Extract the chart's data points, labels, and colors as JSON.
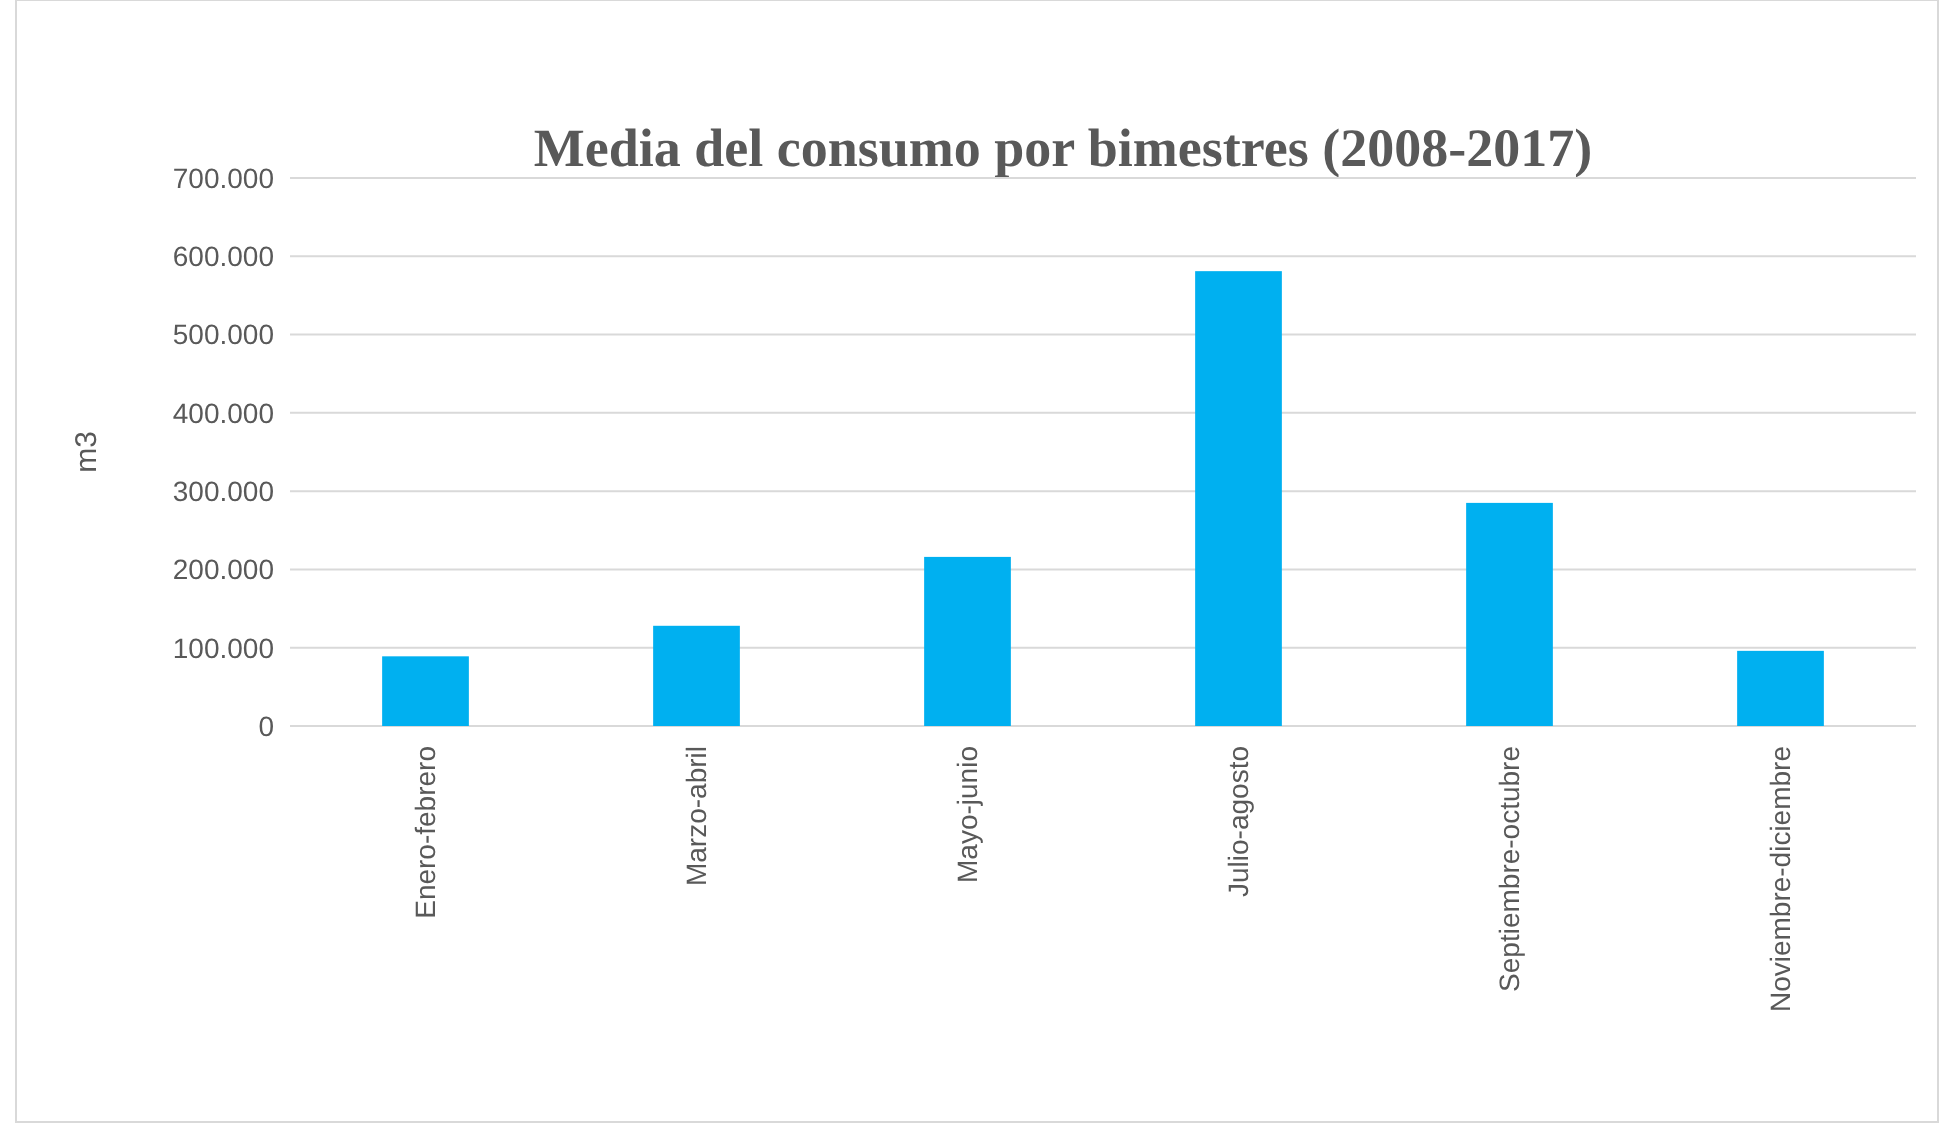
{
  "chart_data": {
    "type": "bar",
    "title": "Media del consumo por bimestres (2008-2017)",
    "ylabel": "m3",
    "categories": [
      "Enero-febrero",
      "Marzo-abril",
      "Mayo-junio",
      "Julio-agosto",
      "Septiembre-octubre",
      "Noviembre-diciembre"
    ],
    "values": [
      89000,
      128000,
      216000,
      581000,
      285000,
      96000
    ],
    "color": "#00b0f0",
    "ylim": [
      0,
      700000
    ],
    "yticks": [
      {
        "value": 0,
        "label": "0"
      },
      {
        "value": 100000,
        "label": "100.000"
      },
      {
        "value": 200000,
        "label": "200.000"
      },
      {
        "value": 300000,
        "label": "300.000"
      },
      {
        "value": 400000,
        "label": "400.000"
      },
      {
        "value": 500000,
        "label": "500.000"
      },
      {
        "value": 600000,
        "label": "600.000"
      },
      {
        "value": 700000,
        "label": "700.000"
      }
    ],
    "grid": true
  }
}
